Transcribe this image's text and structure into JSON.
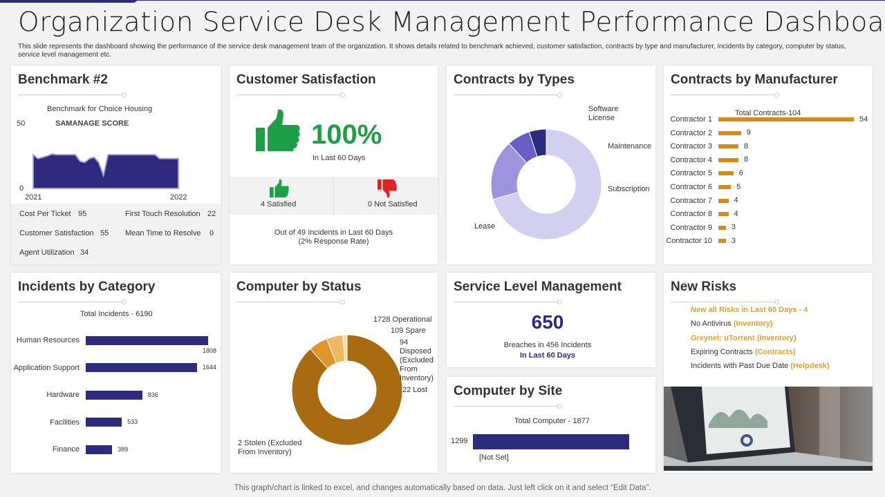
{
  "header": {
    "title": "Organization Service Desk Management Performance Dashboard",
    "subtitle": "This slide represents the dashboard showing the performance of the service desk management team of the organization. It shows details related to benchmark achieved, customer satisfaction, contracts by type and manufacturer, incidents by category, computer by status, service level management etc."
  },
  "benchmark": {
    "title": "Benchmark #2",
    "chart_caption": "Benchmark for Choice Housing",
    "score_label": "SAMANAGE SCORE",
    "stats": [
      {
        "label": "Cost Per Ticket",
        "value": "95"
      },
      {
        "label": "First Touch Resolution",
        "value": "22"
      },
      {
        "label": "Customer Satisfaction",
        "value": "55"
      },
      {
        "label": "Mean Time to Resolve",
        "value": "0"
      },
      {
        "label": "Agent Utilization",
        "value": "34"
      }
    ]
  },
  "satisfaction": {
    "title": "Customer Satisfaction",
    "percent": "100%",
    "period": "In Last 60 Days",
    "satisfied": "4  Satisfied",
    "not_satisfied": "0  Not Satisfied",
    "note_line1": "Out of 49 Incidents in Last 60 Days",
    "note_line2": "(2% Response Rate)",
    "colors": {
      "positive": "#1f9e48",
      "negative": "#e02424"
    }
  },
  "contracts_types": {
    "title": "Contracts by Types"
  },
  "contracts_manufacturer": {
    "title": "Contracts by Manufacturer"
  },
  "incidents": {
    "title": "Incidents by Category"
  },
  "computer_status": {
    "title": "Computer by Status"
  },
  "service_level": {
    "title": "Service Level Management",
    "value": "650",
    "line1": "Breaches in 456 Incidents",
    "line2": "In Last 60 Days"
  },
  "computer_site": {
    "title": "Computer by Site"
  },
  "new_risks": {
    "title": "New Risks",
    "items": [
      {
        "text": "New all Risks in Last 60 Days - 4",
        "tag": ""
      },
      {
        "text": "No Antivirus ",
        "tag": "(Inventory)"
      },
      {
        "text": "Greynet: uTorrent (Inventory)",
        "tag": ""
      },
      {
        "text": "Expiring Contracts ",
        "tag": "(Contracts)"
      },
      {
        "text": "Incidents with Past Due Date ",
        "tag": "(Helpdesk)"
      }
    ],
    "image": "laptop-dashboard-photo"
  },
  "footer": "This graph/chart is linked to excel, and changes automatically based on data. Just left click on it and select “Edit Data”.",
  "colors": {
    "primary": "#2e2a7c",
    "accent": "#d68a1e",
    "brown": "#a86b12"
  },
  "chart_data": [
    {
      "type": "area",
      "title": "Benchmark for Choice Housing",
      "ylabel": "SAMANAGE SCORE",
      "ylim": [
        0,
        50
      ],
      "x_ticks": [
        "2021",
        "2022"
      ],
      "y_ticks": [
        "0",
        "50"
      ],
      "values": [
        26,
        23,
        24,
        25,
        26.5,
        26,
        26,
        26,
        26,
        26,
        21,
        20,
        23,
        24,
        20,
        10,
        26,
        26,
        26,
        26,
        26,
        26,
        26,
        26,
        26,
        26,
        26,
        23,
        23,
        23,
        23,
        23
      ]
    },
    {
      "type": "pie",
      "title": "Contracts by Types",
      "slices": [
        {
          "label": "Software License",
          "value": 156
        },
        {
          "label": "Maintenance",
          "value": 39
        },
        {
          "label": "Subscription",
          "value": 15
        },
        {
          "label": "Lease",
          "value": 11
        }
      ],
      "colors": [
        "#d3cff0",
        "#9d94dd",
        "#6a5fc8",
        "#2e2a7c"
      ]
    },
    {
      "type": "bar",
      "orientation": "horizontal",
      "title": "Total Contracts-104",
      "categories": [
        "Contractor 1",
        "Contractor 2",
        "Contractor 3",
        "Contractor 4",
        "Contractor 5",
        "Contractor 6",
        "Contractor 7",
        "Contractor 8",
        "Contractor 9",
        "Contractor 10"
      ],
      "values": [
        54,
        9,
        8,
        8,
        6,
        5,
        4,
        4,
        3,
        3
      ]
    },
    {
      "type": "bar",
      "orientation": "horizontal",
      "title": "Total Incidents - 6190",
      "categories": [
        "Human Resources",
        "Application Support",
        "Hardware",
        "Facilities",
        "Finance"
      ],
      "values": [
        1808,
        1644,
        836,
        533,
        389
      ]
    },
    {
      "type": "pie",
      "title": "Computer by Status",
      "slices": [
        {
          "label": "1728 Operational",
          "value": 1728
        },
        {
          "label": "109 Spare",
          "value": 109
        },
        {
          "label": "94 Disposed (Excluded From Inventory)",
          "value": 94
        },
        {
          "label": "22 Lost",
          "value": 22
        },
        {
          "label": "2 Stolen (Excluded From Inventory)",
          "value": 2
        }
      ],
      "colors": [
        "#a86b12",
        "#e0952a",
        "#eeb865",
        "#f6d7a6",
        "#f9e7c8"
      ]
    },
    {
      "type": "bar",
      "orientation": "horizontal",
      "title": "Total Computer - 1877",
      "categories": [
        "[Not Set]"
      ],
      "values": [
        1299
      ]
    }
  ]
}
